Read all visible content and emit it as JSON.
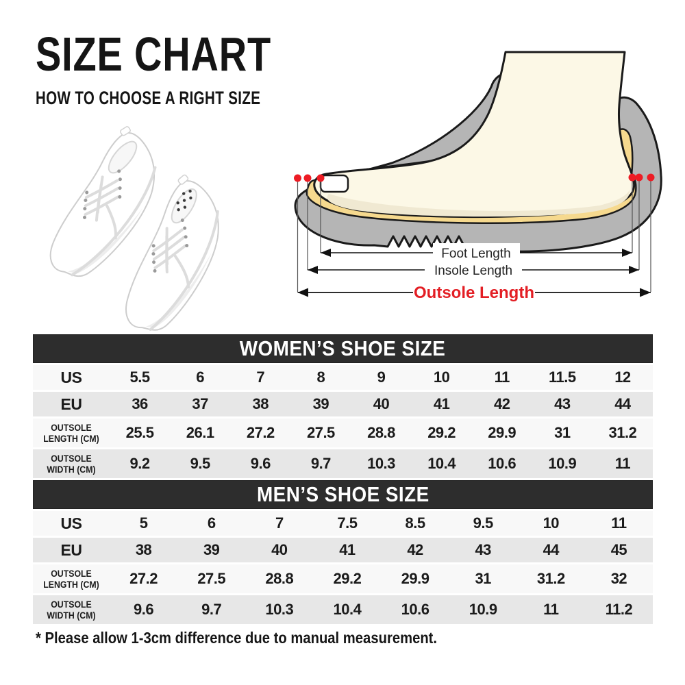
{
  "header": {
    "title": "SIZE CHART",
    "subtitle": "HOW TO CHOOSE A RIGHT SIZE"
  },
  "diagram": {
    "foot_length_label": "Foot Length",
    "insole_length_label": "Insole Length",
    "outsole_length_label": "Outsole Length",
    "colors": {
      "sole_gray": "#b5b5b5",
      "insole_yellow": "#f6d98e",
      "foot_cream": "#fcf8e6",
      "marker_red": "#ed1c24",
      "outsole_label_red": "#e31e24"
    }
  },
  "tables": [
    {
      "title": "WOMEN’S SHOE SIZE",
      "rows": [
        {
          "label": "US",
          "values": [
            "5.5",
            "6",
            "7",
            "8",
            "9",
            "10",
            "11",
            "11.5",
            "12"
          ]
        },
        {
          "label": "EU",
          "values": [
            "36",
            "37",
            "38",
            "39",
            "40",
            "41",
            "42",
            "43",
            "44"
          ]
        },
        {
          "label": "OUTSOLE",
          "label2": "LENGTH (CM)",
          "values": [
            "25.5",
            "26.1",
            "27.2",
            "27.5",
            "28.8",
            "29.2",
            "29.9",
            "31",
            "31.2"
          ]
        },
        {
          "label": "OUTSOLE",
          "label2": "WIDTH (CM)",
          "values": [
            "9.2",
            "9.5",
            "9.6",
            "9.7",
            "10.3",
            "10.4",
            "10.6",
            "10.9",
            "11"
          ]
        }
      ]
    },
    {
      "title": "MEN’S SHOE SIZE",
      "rows": [
        {
          "label": "US",
          "values": [
            "5",
            "6",
            "7",
            "7.5",
            "8.5",
            "9.5",
            "10",
            "11"
          ]
        },
        {
          "label": "EU",
          "values": [
            "38",
            "39",
            "40",
            "41",
            "42",
            "43",
            "44",
            "45"
          ]
        },
        {
          "label": "OUTSOLE",
          "label2": "LENGTH (CM)",
          "values": [
            "27.2",
            "27.5",
            "28.8",
            "29.2",
            "29.9",
            "31",
            "31.2",
            "32"
          ]
        },
        {
          "label": "OUTSOLE",
          "label2": "WIDTH (CM)",
          "values": [
            "9.6",
            "9.7",
            "10.3",
            "10.4",
            "10.6",
            "10.9",
            "11",
            "11.2"
          ]
        }
      ]
    }
  ],
  "footnote": "* Please allow 1-3cm difference due to manual measurement.",
  "colors": {
    "header_bar": "#2d2d2d",
    "row_light": "#f8f8f8",
    "row_shade": "#e7e7e7"
  }
}
